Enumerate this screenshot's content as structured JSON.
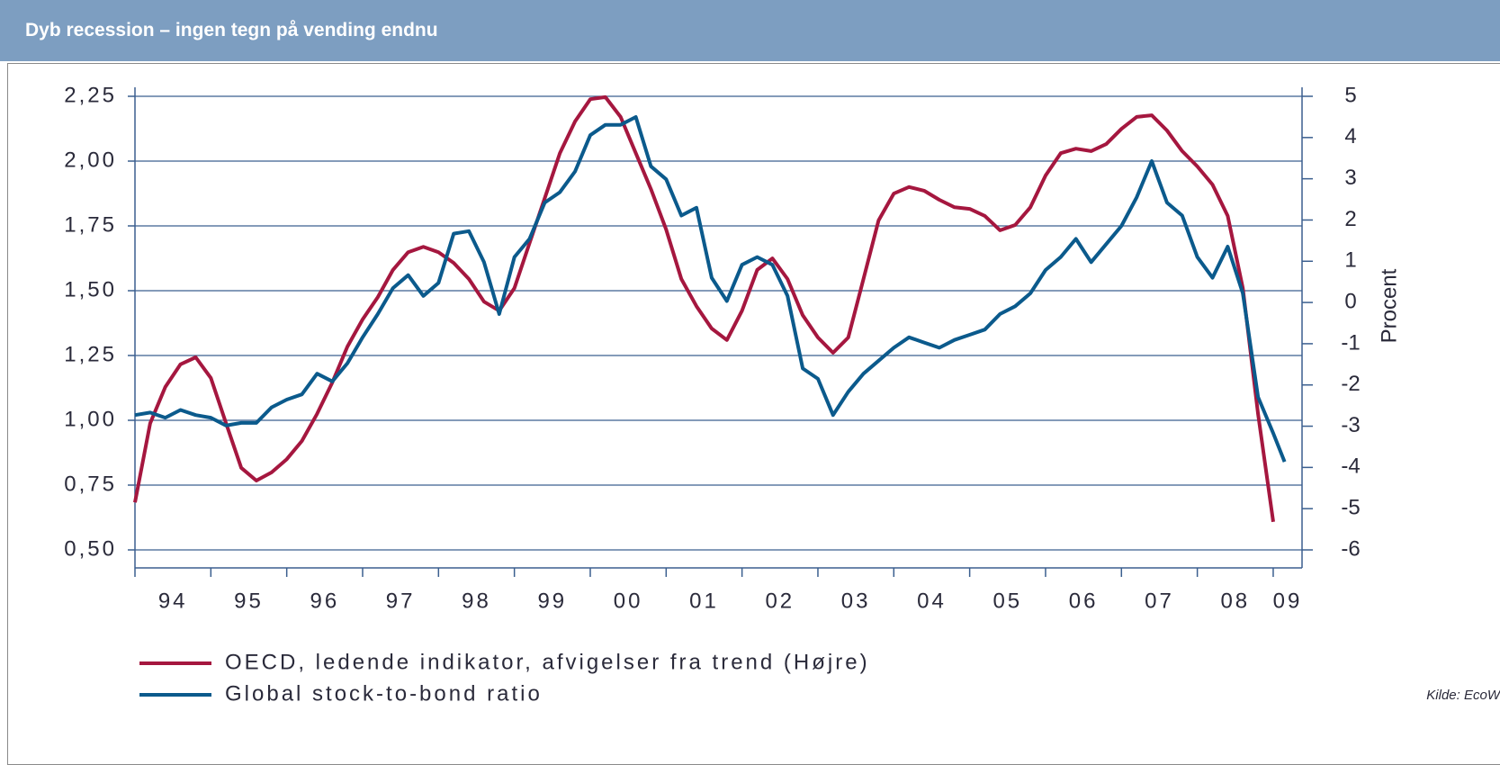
{
  "chart_data": {
    "type": "line",
    "title": "Dyb recession – ingen tegn på vending endnu",
    "y2label": "Procent",
    "source": "Kilde: EcoW",
    "x": [
      1994.0,
      1994.2,
      1994.4,
      1994.6,
      1994.8,
      1995.0,
      1995.2,
      1995.4,
      1995.6,
      1995.8,
      1996.0,
      1996.2,
      1996.4,
      1996.6,
      1996.8,
      1997.0,
      1997.2,
      1997.4,
      1997.6,
      1997.8,
      1998.0,
      1998.2,
      1998.4,
      1998.6,
      1998.8,
      1999.0,
      1999.2,
      1999.4,
      1999.6,
      1999.8,
      2000.0,
      2000.2,
      2000.4,
      2000.6,
      2000.8,
      2001.0,
      2001.2,
      2001.4,
      2001.6,
      2001.8,
      2002.0,
      2002.2,
      2002.4,
      2002.6,
      2002.8,
      2003.0,
      2003.2,
      2003.4,
      2003.6,
      2003.8,
      2004.0,
      2004.2,
      2004.4,
      2004.6,
      2004.8,
      2005.0,
      2005.2,
      2005.4,
      2005.6,
      2005.8,
      2006.0,
      2006.2,
      2006.4,
      2006.6,
      2006.8,
      2007.0,
      2007.2,
      2007.4,
      2007.6,
      2007.8,
      2008.0,
      2008.2,
      2008.4,
      2008.6,
      2008.8,
      2009.0,
      2009.15
    ],
    "series": [
      {
        "name": "OECD, ledende indikator, afvigelser fra trend (Højre)",
        "color": "#a5173f",
        "axis": "y2",
        "values": [
          -4.85,
          -2.93,
          -2.05,
          -1.5,
          -1.33,
          -1.83,
          -2.93,
          -4.01,
          -4.32,
          -4.12,
          -3.8,
          -3.36,
          -2.7,
          -1.94,
          -1.07,
          -0.41,
          0.13,
          0.79,
          1.22,
          1.35,
          1.22,
          0.96,
          0.57,
          0.02,
          -0.2,
          0.35,
          1.44,
          2.53,
          3.62,
          4.39,
          4.93,
          4.98,
          4.5,
          3.62,
          2.75,
          1.77,
          0.57,
          -0.09,
          -0.63,
          -0.91,
          -0.2,
          0.79,
          1.07,
          0.57,
          -0.31,
          -0.85,
          -1.22,
          -0.85,
          0.57,
          1.99,
          2.64,
          2.8,
          2.71,
          2.49,
          2.31,
          2.27,
          2.1,
          1.75,
          1.88,
          2.31,
          3.08,
          3.62,
          3.73,
          3.67,
          3.84,
          4.21,
          4.5,
          4.54,
          4.17,
          3.67,
          3.3,
          2.86,
          2.1,
          0.35,
          -2.7,
          -5.32,
          null
        ]
      },
      {
        "name": "Global stock-to-bond ratio",
        "color": "#0b5a8c",
        "values": [
          1.02,
          1.03,
          1.01,
          1.04,
          1.02,
          1.01,
          0.98,
          0.99,
          0.99,
          1.05,
          1.08,
          1.1,
          1.18,
          1.15,
          1.22,
          1.32,
          1.41,
          1.51,
          1.56,
          1.48,
          1.53,
          1.72,
          1.73,
          1.61,
          1.41,
          1.63,
          1.7,
          1.84,
          1.88,
          1.96,
          2.1,
          2.14,
          2.14,
          2.17,
          1.98,
          1.93,
          1.79,
          1.82,
          1.55,
          1.46,
          1.6,
          1.63,
          1.6,
          1.48,
          1.2,
          1.16,
          1.02,
          1.11,
          1.18,
          1.23,
          1.28,
          1.32,
          1.3,
          1.28,
          1.31,
          1.33,
          1.35,
          1.41,
          1.44,
          1.49,
          1.58,
          1.63,
          1.7,
          1.61,
          1.68,
          1.75,
          1.86,
          2.0,
          1.84,
          1.79,
          1.63,
          1.55,
          1.67,
          1.49,
          1.09,
          0.95,
          0.84
        ]
      }
    ],
    "xlim": [
      1994,
      2009.38
    ],
    "xticks": [
      {
        "value": 1994,
        "label": "94"
      },
      {
        "value": 1995,
        "label": "95"
      },
      {
        "value": 1996,
        "label": "96"
      },
      {
        "value": 1997,
        "label": "97"
      },
      {
        "value": 1998,
        "label": "98"
      },
      {
        "value": 1999,
        "label": "99"
      },
      {
        "value": 2000,
        "label": "00"
      },
      {
        "value": 2001,
        "label": "01"
      },
      {
        "value": 2002,
        "label": "02"
      },
      {
        "value": 2003,
        "label": "03"
      },
      {
        "value": 2004,
        "label": "04"
      },
      {
        "value": 2005,
        "label": "05"
      },
      {
        "value": 2006,
        "label": "06"
      },
      {
        "value": 2007,
        "label": "07"
      },
      {
        "value": 2008,
        "label": "08"
      },
      {
        "value": 2009,
        "label": "09"
      }
    ],
    "ylim": [
      0.5,
      2.25
    ],
    "yticks": [
      {
        "value": 0.5,
        "label": "0,50"
      },
      {
        "value": 0.75,
        "label": "0,75"
      },
      {
        "value": 1.0,
        "label": "1,00"
      },
      {
        "value": 1.25,
        "label": "1,25"
      },
      {
        "value": 1.5,
        "label": "1,50"
      },
      {
        "value": 1.75,
        "label": "1,75"
      },
      {
        "value": 2.0,
        "label": "2,00"
      },
      {
        "value": 2.25,
        "label": "2,25"
      }
    ],
    "y2lim": [
      -6,
      5
    ],
    "y2ticks": [
      -6,
      -5,
      -4,
      -3,
      -2,
      -1,
      0,
      1,
      2,
      3,
      4,
      5
    ],
    "grid": true
  }
}
